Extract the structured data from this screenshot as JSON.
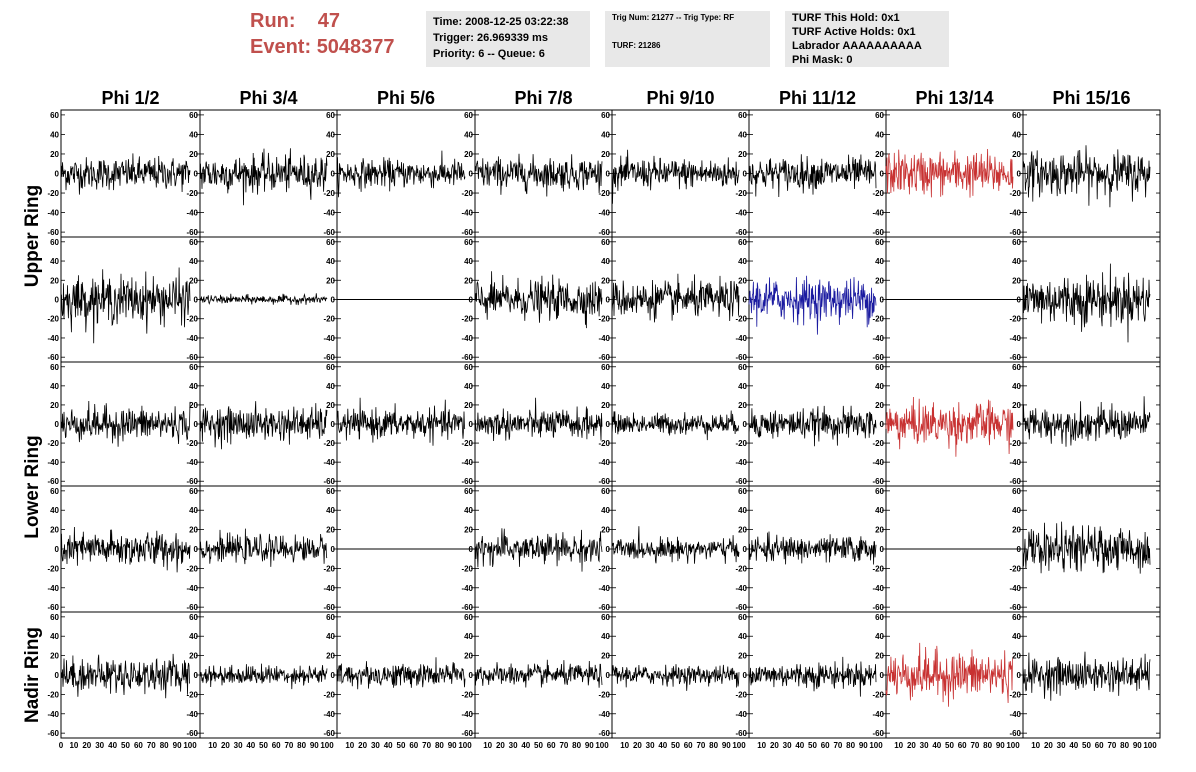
{
  "header": {
    "run_label": "Run:",
    "run_value": "47",
    "event_label": "Event:",
    "event_value": "5048377",
    "title_color": "#c0504d"
  },
  "info_box_1": {
    "line1": "Time: 2008-12-25 03:22:38",
    "line2": "Trigger: 26.969339 ms",
    "line3": "Priority: 6 -- Queue: 6"
  },
  "info_box_2": {
    "line1": "Trig Num: 21277 -- Trig Type: RF",
    "line2": "TURF: 21286"
  },
  "info_box_3": {
    "line1": "TURF This Hold: 0x1",
    "line2": "TURF Active Holds: 0x1",
    "line3": "Labrador AAAAAAAAAA",
    "line4": "Phi Mask: 0"
  },
  "chart_data": {
    "type": "line",
    "columns": [
      "Phi 1/2",
      "Phi 3/4",
      "Phi 5/6",
      "Phi 7/8",
      "Phi 9/10",
      "Phi 11/12",
      "Phi 13/14",
      "Phi 15/16"
    ],
    "ring_labels": [
      "Upper Ring",
      "Lower Ring",
      "Nadir Ring"
    ],
    "rows": 5,
    "ylim": [
      -65,
      65
    ],
    "yticks": [
      -60,
      -40,
      -20,
      0,
      20,
      40,
      60
    ],
    "xlim": [
      0,
      100
    ],
    "xticks_first": [
      "0",
      "10",
      "20",
      "30",
      "40",
      "50",
      "60",
      "70",
      "80",
      "90",
      "100"
    ],
    "xticks_other": [
      "10",
      "20",
      "30",
      "40",
      "50",
      "60",
      "70",
      "80",
      "90",
      "100"
    ],
    "colors": {
      "default": "#000000",
      "red": "#c83232",
      "blue": "#1a1aa0"
    },
    "traces": [
      [
        "n15",
        "n17",
        "n13",
        "n15",
        "n14",
        "n15",
        "r20",
        "n20"
      ],
      [
        "n22",
        "n4",
        "flat",
        "n18",
        "n17",
        "b20",
        "flat",
        "n24"
      ],
      [
        "n16",
        "n16",
        "n14",
        "n14",
        "n10",
        "n14",
        "r20",
        "n16"
      ],
      [
        "n16",
        "n12",
        "flat",
        "n14",
        "n10",
        "n12",
        "flat",
        "n20"
      ],
      [
        "n16",
        "n9",
        "n11",
        "n10",
        "n9",
        "n12",
        "r22",
        "n16"
      ]
    ]
  }
}
